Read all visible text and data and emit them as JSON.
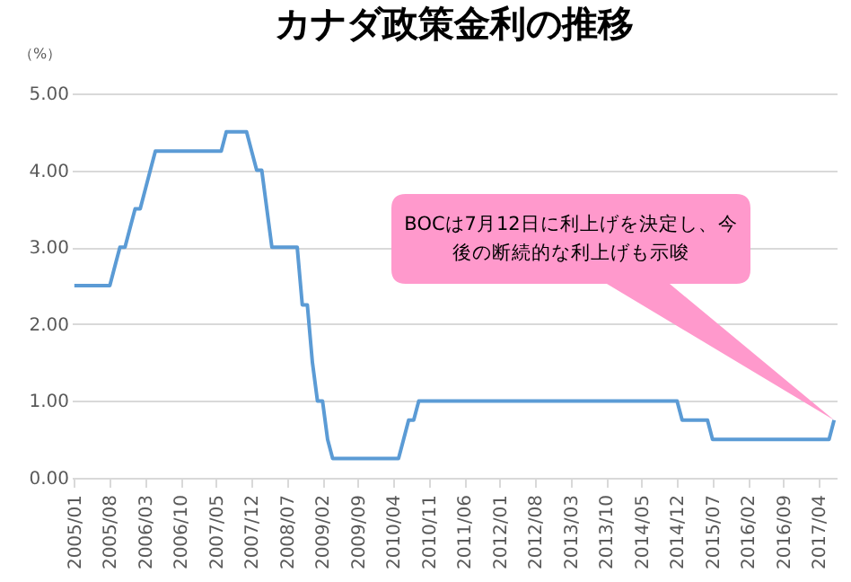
{
  "chart_data": {
    "type": "line",
    "title": "カナダ政策金利の推移",
    "ylabel": "（%）",
    "categories": [
      "2005/01",
      null,
      null,
      null,
      null,
      null,
      null,
      "2005/08",
      null,
      null,
      null,
      null,
      null,
      null,
      "2006/03",
      null,
      null,
      null,
      null,
      null,
      null,
      "2006/10",
      null,
      null,
      null,
      null,
      null,
      null,
      "2007/05",
      null,
      null,
      null,
      null,
      null,
      null,
      "2007/12",
      null,
      null,
      null,
      null,
      null,
      null,
      "2008/07",
      null,
      null,
      null,
      null,
      null,
      null,
      "2009/02",
      null,
      null,
      null,
      null,
      null,
      null,
      "2009/09",
      null,
      null,
      null,
      null,
      null,
      null,
      "2010/04",
      null,
      null,
      null,
      null,
      null,
      null,
      "2010/11",
      null,
      null,
      null,
      null,
      null,
      null,
      "2011/06",
      null,
      null,
      null,
      null,
      null,
      null,
      "2012/01",
      null,
      null,
      null,
      null,
      null,
      null,
      "2012/08",
      null,
      null,
      null,
      null,
      null,
      null,
      "2013/03",
      null,
      null,
      null,
      null,
      null,
      null,
      "2013/10",
      null,
      null,
      null,
      null,
      null,
      null,
      "2014/05",
      null,
      null,
      null,
      null,
      null,
      null,
      "2014/12",
      null,
      null,
      null,
      null,
      null,
      null,
      "2015/07",
      null,
      null,
      null,
      null,
      null,
      null,
      "2016/02",
      null,
      null,
      null,
      null,
      null,
      null,
      "2016/09",
      null,
      null,
      null,
      null,
      null,
      null,
      "2017/04",
      null,
      null,
      null
    ],
    "series": [
      {
        "color": "#5b9bd5",
        "values": [
          2.5,
          2.5,
          2.5,
          2.5,
          2.5,
          2.5,
          2.5,
          2.5,
          2.75,
          3.0,
          3.0,
          3.25,
          3.5,
          3.5,
          3.75,
          4.0,
          4.25,
          4.25,
          4.25,
          4.25,
          4.25,
          4.25,
          4.25,
          4.25,
          4.25,
          4.25,
          4.25,
          4.25,
          4.25,
          4.25,
          4.5,
          4.5,
          4.5,
          4.5,
          4.5,
          4.25,
          4.0,
          4.0,
          3.5,
          3.0,
          3.0,
          3.0,
          3.0,
          3.0,
          3.0,
          2.25,
          2.25,
          1.5,
          1.0,
          1.0,
          0.5,
          0.25,
          0.25,
          0.25,
          0.25,
          0.25,
          0.25,
          0.25,
          0.25,
          0.25,
          0.25,
          0.25,
          0.25,
          0.25,
          0.25,
          0.5,
          0.75,
          0.75,
          1.0,
          1.0,
          1.0,
          1.0,
          1.0,
          1.0,
          1.0,
          1.0,
          1.0,
          1.0,
          1.0,
          1.0,
          1.0,
          1.0,
          1.0,
          1.0,
          1.0,
          1.0,
          1.0,
          1.0,
          1.0,
          1.0,
          1.0,
          1.0,
          1.0,
          1.0,
          1.0,
          1.0,
          1.0,
          1.0,
          1.0,
          1.0,
          1.0,
          1.0,
          1.0,
          1.0,
          1.0,
          1.0,
          1.0,
          1.0,
          1.0,
          1.0,
          1.0,
          1.0,
          1.0,
          1.0,
          1.0,
          1.0,
          1.0,
          1.0,
          1.0,
          1.0,
          0.75,
          0.75,
          0.75,
          0.75,
          0.75,
          0.75,
          0.5,
          0.5,
          0.5,
          0.5,
          0.5,
          0.5,
          0.5,
          0.5,
          0.5,
          0.5,
          0.5,
          0.5,
          0.5,
          0.5,
          0.5,
          0.5,
          0.5,
          0.5,
          0.5,
          0.5,
          0.5,
          0.5,
          0.5,
          0.5,
          0.75
        ]
      }
    ],
    "ylim": [
      0,
      5
    ],
    "yticks": [
      {
        "value": 0,
        "label": "0.00"
      },
      {
        "value": 1,
        "label": "1.00"
      },
      {
        "value": 2,
        "label": "2.00"
      },
      {
        "value": 3,
        "label": "3.00"
      },
      {
        "value": 4,
        "label": "4.00"
      },
      {
        "value": 5,
        "label": "5.00"
      }
    ],
    "grid": "y",
    "marker": "none",
    "line_style": "solid",
    "annotations": [
      "BOCは7月12日に利上げを決定し、今後の断続的な利上げも示唆"
    ]
  }
}
